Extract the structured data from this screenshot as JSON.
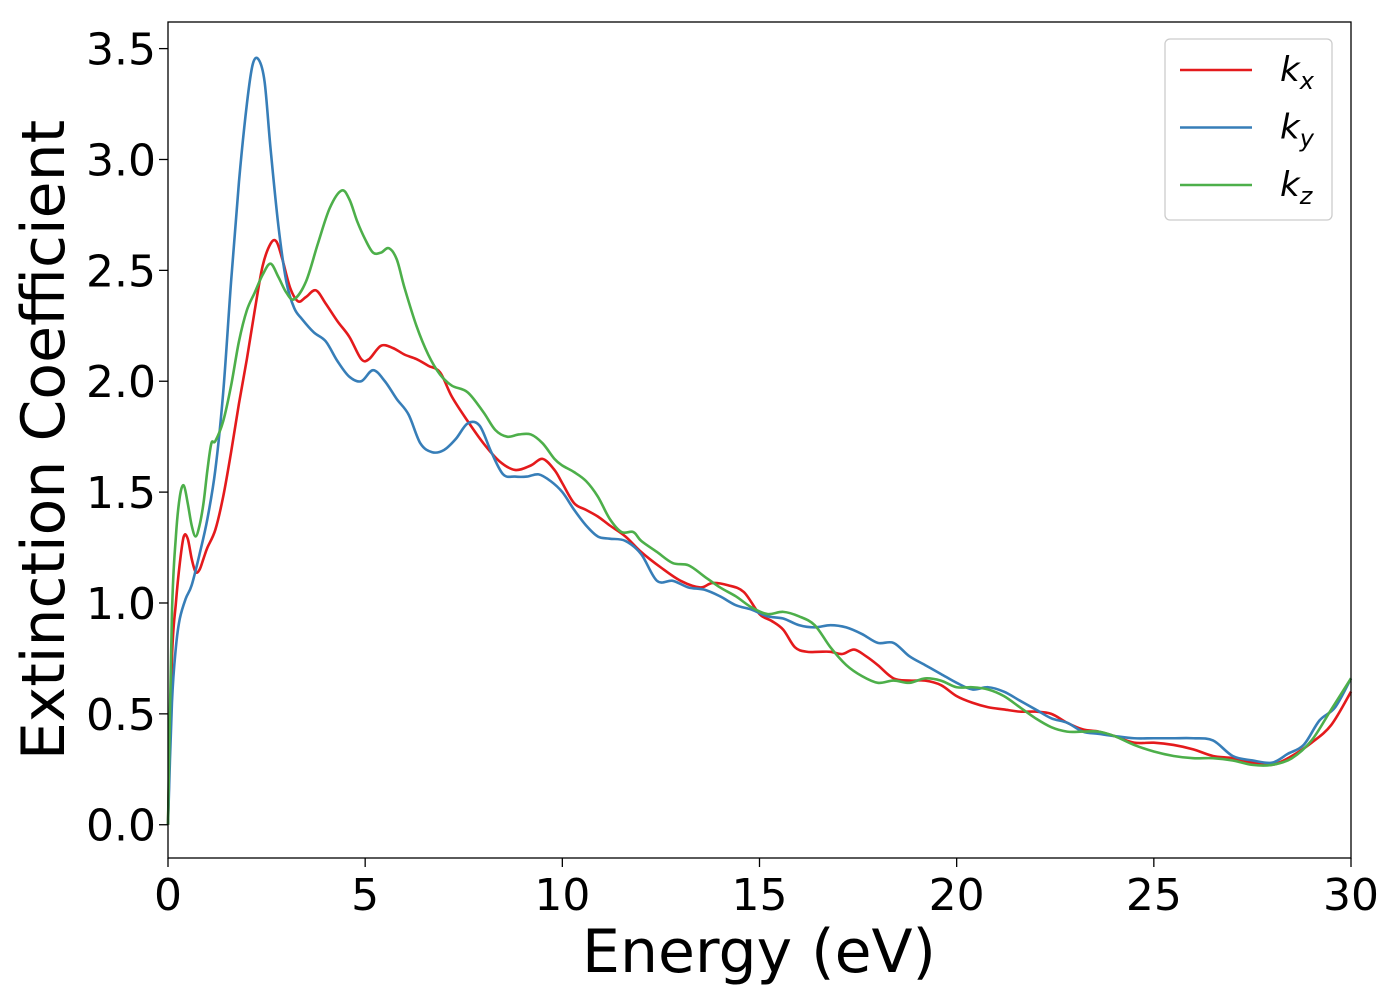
{
  "chart_data": {
    "type": "line",
    "xlabel": "Energy (eV)",
    "ylabel": "Extinction Coefficient",
    "xlim": [
      0,
      30
    ],
    "ylim": [
      -0.15,
      3.62
    ],
    "xticks": [
      "0",
      "5",
      "10",
      "15",
      "20",
      "25",
      "30"
    ],
    "yticks": [
      "0.0",
      "0.5",
      "1.0",
      "1.5",
      "2.0",
      "2.5",
      "3.0",
      "3.5"
    ],
    "grid": false,
    "legend_position": "top-right",
    "series": [
      {
        "name": "k_x",
        "label_main": "k",
        "label_sub": "x",
        "color": "#e41a1c",
        "x": [
          0,
          0.1,
          0.2,
          0.3,
          0.4,
          0.5,
          0.6,
          0.7,
          0.8,
          0.9,
          1.0,
          1.2,
          1.4,
          1.6,
          1.8,
          2.0,
          2.2,
          2.4,
          2.6,
          2.75,
          2.9,
          3.1,
          3.3,
          3.5,
          3.75,
          4.0,
          4.3,
          4.6,
          4.9,
          5.1,
          5.4,
          5.7,
          6.0,
          6.3,
          6.6,
          6.9,
          7.2,
          7.6,
          8.0,
          8.4,
          8.8,
          9.2,
          9.5,
          9.8,
          10.0,
          10.3,
          10.6,
          10.9,
          11.2,
          11.6,
          12.0,
          12.5,
          13.0,
          13.5,
          13.8,
          14.2,
          14.6,
          15.0,
          15.3,
          15.6,
          15.9,
          16.2,
          16.5,
          16.8,
          17.1,
          17.4,
          17.7,
          18.0,
          18.4,
          18.8,
          19.2,
          19.6,
          20.0,
          20.4,
          20.8,
          21.2,
          21.6,
          22.0,
          22.4,
          22.8,
          23.2,
          23.6,
          24.0,
          24.5,
          25.0,
          25.5,
          26.0,
          26.5,
          27.0,
          27.5,
          28.0,
          28.5,
          29.0,
          29.5,
          30.0
        ],
        "values": [
          0.0,
          0.75,
          1.0,
          1.18,
          1.3,
          1.29,
          1.2,
          1.14,
          1.15,
          1.2,
          1.25,
          1.33,
          1.48,
          1.68,
          1.9,
          2.1,
          2.32,
          2.52,
          2.62,
          2.63,
          2.55,
          2.42,
          2.36,
          2.38,
          2.41,
          2.35,
          2.27,
          2.2,
          2.1,
          2.1,
          2.16,
          2.15,
          2.12,
          2.1,
          2.07,
          2.04,
          1.93,
          1.82,
          1.72,
          1.64,
          1.6,
          1.62,
          1.65,
          1.6,
          1.54,
          1.45,
          1.42,
          1.39,
          1.35,
          1.3,
          1.23,
          1.16,
          1.1,
          1.07,
          1.09,
          1.08,
          1.05,
          0.95,
          0.92,
          0.88,
          0.8,
          0.78,
          0.78,
          0.78,
          0.77,
          0.79,
          0.76,
          0.72,
          0.66,
          0.65,
          0.65,
          0.63,
          0.58,
          0.55,
          0.53,
          0.52,
          0.51,
          0.51,
          0.5,
          0.46,
          0.43,
          0.42,
          0.4,
          0.37,
          0.37,
          0.36,
          0.34,
          0.31,
          0.3,
          0.28,
          0.27,
          0.31,
          0.37,
          0.45,
          0.6
        ]
      },
      {
        "name": "k_y",
        "label_main": "k",
        "label_sub": "y",
        "color": "#377eb8",
        "x": [
          0,
          0.1,
          0.2,
          0.3,
          0.45,
          0.6,
          0.8,
          1.0,
          1.2,
          1.4,
          1.6,
          1.8,
          2.0,
          2.15,
          2.3,
          2.45,
          2.6,
          2.8,
          3.0,
          3.2,
          3.4,
          3.7,
          4.0,
          4.3,
          4.6,
          4.9,
          5.2,
          5.5,
          5.8,
          6.1,
          6.4,
          6.7,
          7.0,
          7.3,
          7.6,
          7.9,
          8.2,
          8.5,
          8.8,
          9.1,
          9.4,
          9.7,
          10.0,
          10.3,
          10.6,
          10.9,
          11.2,
          11.6,
          12.0,
          12.4,
          12.8,
          13.2,
          13.6,
          14.0,
          14.4,
          14.8,
          15.2,
          15.6,
          16.0,
          16.4,
          16.8,
          17.2,
          17.6,
          18.0,
          18.4,
          18.8,
          19.2,
          19.6,
          20.0,
          20.4,
          20.8,
          21.2,
          21.6,
          22.0,
          22.4,
          22.8,
          23.2,
          23.6,
          24.0,
          24.5,
          25.0,
          25.5,
          26.0,
          26.5,
          27.0,
          27.5,
          28.0,
          28.4,
          28.8,
          29.2,
          29.6,
          30.0
        ],
        "values": [
          0.0,
          0.55,
          0.8,
          0.93,
          1.02,
          1.08,
          1.22,
          1.38,
          1.6,
          1.95,
          2.45,
          2.9,
          3.25,
          3.43,
          3.45,
          3.35,
          3.05,
          2.7,
          2.45,
          2.33,
          2.28,
          2.22,
          2.18,
          2.09,
          2.02,
          2.0,
          2.05,
          2.0,
          1.92,
          1.85,
          1.72,
          1.68,
          1.69,
          1.74,
          1.81,
          1.8,
          1.68,
          1.58,
          1.57,
          1.57,
          1.58,
          1.55,
          1.5,
          1.42,
          1.35,
          1.3,
          1.29,
          1.28,
          1.22,
          1.1,
          1.1,
          1.07,
          1.06,
          1.03,
          0.99,
          0.97,
          0.94,
          0.93,
          0.9,
          0.89,
          0.9,
          0.89,
          0.86,
          0.82,
          0.82,
          0.76,
          0.72,
          0.68,
          0.64,
          0.61,
          0.62,
          0.6,
          0.56,
          0.52,
          0.48,
          0.46,
          0.42,
          0.41,
          0.4,
          0.39,
          0.39,
          0.39,
          0.39,
          0.38,
          0.31,
          0.29,
          0.28,
          0.32,
          0.36,
          0.47,
          0.53,
          0.66
        ]
      },
      {
        "name": "k_z",
        "label_main": "k",
        "label_sub": "z",
        "color": "#4daf4a",
        "x": [
          0,
          0.1,
          0.2,
          0.3,
          0.4,
          0.5,
          0.6,
          0.7,
          0.8,
          0.9,
          1.0,
          1.1,
          1.2,
          1.4,
          1.6,
          1.8,
          2.0,
          2.2,
          2.4,
          2.6,
          2.8,
          3.0,
          3.2,
          3.5,
          3.8,
          4.1,
          4.4,
          4.6,
          4.8,
          5.0,
          5.2,
          5.4,
          5.6,
          5.8,
          6.0,
          6.3,
          6.6,
          6.9,
          7.2,
          7.6,
          8.0,
          8.3,
          8.6,
          8.9,
          9.2,
          9.5,
          9.8,
          10.0,
          10.3,
          10.6,
          10.9,
          11.2,
          11.5,
          11.8,
          12.0,
          12.4,
          12.8,
          13.2,
          13.6,
          14.0,
          14.4,
          14.8,
          15.2,
          15.6,
          16.0,
          16.4,
          16.8,
          17.2,
          17.6,
          18.0,
          18.4,
          18.8,
          19.2,
          19.6,
          20.0,
          20.4,
          20.8,
          21.2,
          21.6,
          22.0,
          22.4,
          22.8,
          23.2,
          23.6,
          24.0,
          24.5,
          25.0,
          25.5,
          26.0,
          26.5,
          27.0,
          27.5,
          28.0,
          28.5,
          29.0,
          29.5,
          30.0
        ],
        "values": [
          0.0,
          0.95,
          1.3,
          1.48,
          1.53,
          1.45,
          1.35,
          1.3,
          1.35,
          1.45,
          1.6,
          1.72,
          1.73,
          1.82,
          1.98,
          2.18,
          2.32,
          2.4,
          2.48,
          2.53,
          2.47,
          2.4,
          2.37,
          2.45,
          2.62,
          2.78,
          2.86,
          2.82,
          2.72,
          2.64,
          2.58,
          2.58,
          2.6,
          2.55,
          2.42,
          2.25,
          2.12,
          2.03,
          1.98,
          1.95,
          1.86,
          1.78,
          1.75,
          1.76,
          1.76,
          1.72,
          1.65,
          1.62,
          1.59,
          1.55,
          1.48,
          1.38,
          1.32,
          1.32,
          1.28,
          1.23,
          1.18,
          1.17,
          1.12,
          1.07,
          1.03,
          0.98,
          0.95,
          0.96,
          0.94,
          0.9,
          0.8,
          0.72,
          0.67,
          0.64,
          0.65,
          0.64,
          0.66,
          0.65,
          0.62,
          0.62,
          0.61,
          0.58,
          0.53,
          0.48,
          0.44,
          0.42,
          0.42,
          0.42,
          0.4,
          0.36,
          0.33,
          0.31,
          0.3,
          0.3,
          0.29,
          0.27,
          0.27,
          0.3,
          0.38,
          0.52,
          0.66
        ]
      }
    ]
  }
}
